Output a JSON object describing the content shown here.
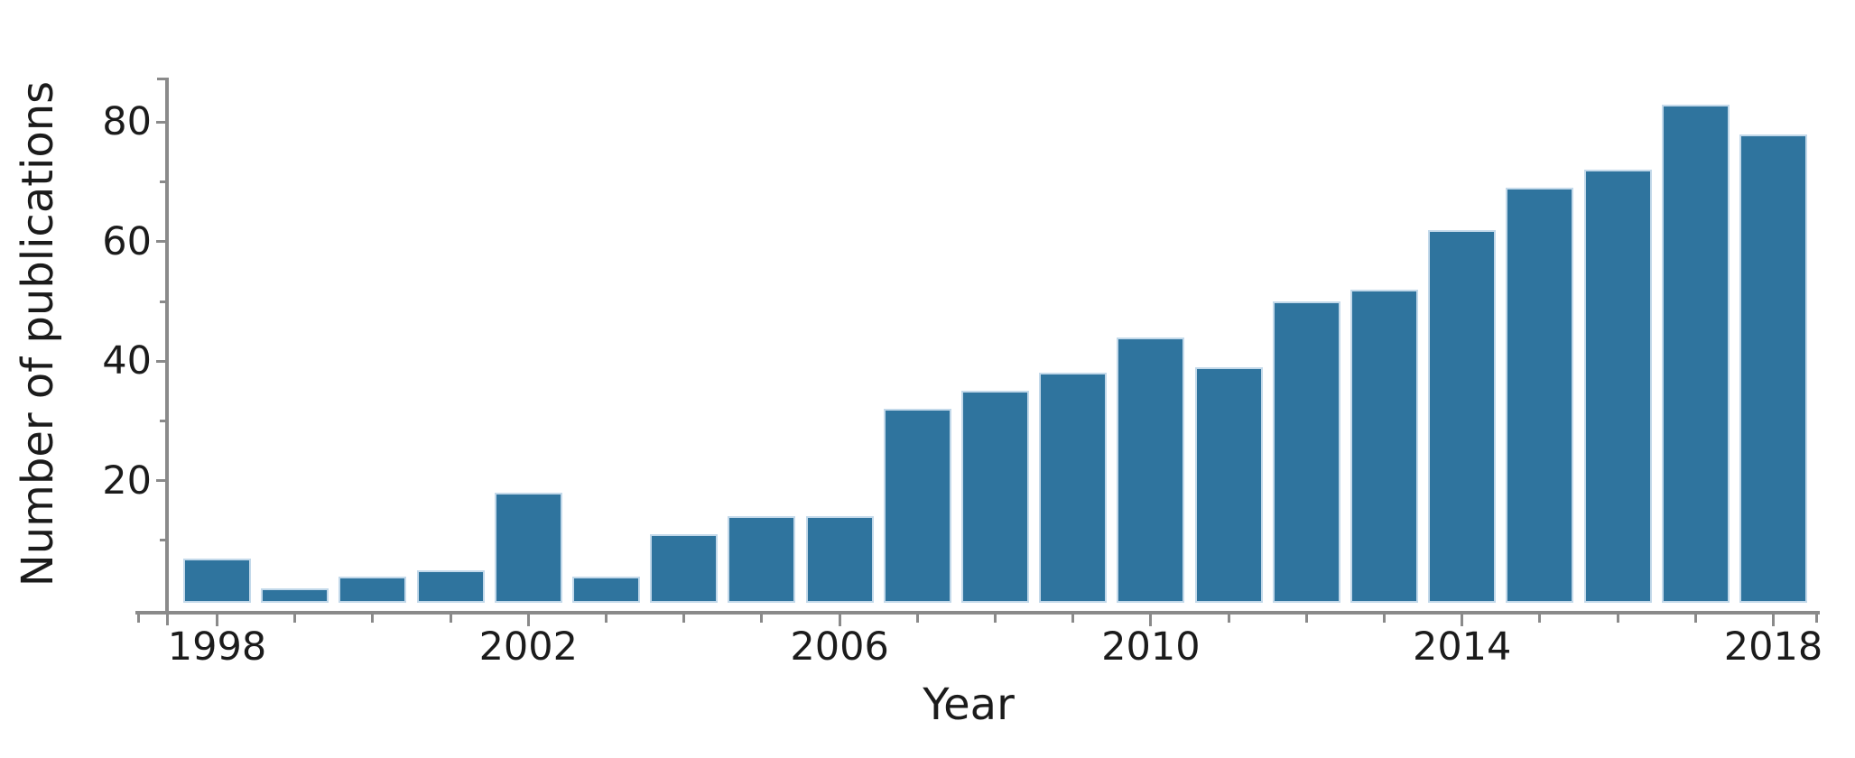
{
  "figure": {
    "background": "#ffffff"
  },
  "chart_data": {
    "type": "bar",
    "title": "",
    "xlabel": "Year",
    "ylabel": "Number of publications",
    "categories": [
      1998,
      1999,
      2000,
      2001,
      2002,
      2003,
      2004,
      2005,
      2006,
      2007,
      2008,
      2009,
      2010,
      2011,
      2012,
      2013,
      2014,
      2015,
      2016,
      2017,
      2018
    ],
    "values": [
      7,
      2,
      4,
      5,
      18,
      4,
      11,
      14,
      14,
      32,
      35,
      38,
      44,
      39,
      50,
      52,
      62,
      69,
      72,
      83,
      78
    ],
    "x_tick_labels": [
      "1998",
      "2002",
      "2006",
      "2010",
      "2014",
      "2018"
    ],
    "x_labeled_years": [
      1998,
      2002,
      2006,
      2010,
      2014,
      2018
    ],
    "y_ticks_major": [
      20,
      40,
      60,
      80
    ],
    "y_ticks_minor": [
      10,
      30,
      50,
      70
    ],
    "ylim": [
      0,
      87
    ],
    "grid": false,
    "legend": null,
    "bar_color": "#2F749E",
    "bar_edge_color": "#c3d9ea",
    "axis_color": "#8a8a8a",
    "label_color": "#1b1b1b"
  }
}
